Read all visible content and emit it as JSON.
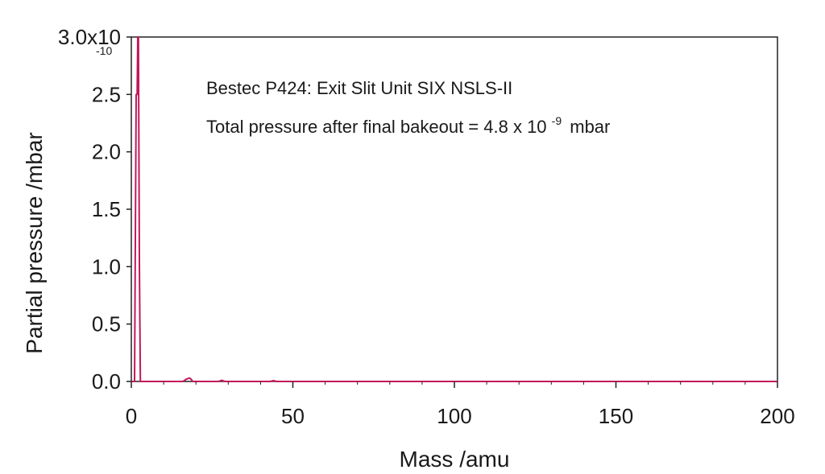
{
  "chart_data": {
    "type": "line",
    "annotations": [
      "Bestec P424: Exit Slit Unit SIX NSLS-II",
      "Total pressure after final bakeout = 4.8 x 10",
      "-9",
      "mbar"
    ],
    "xlabel": "Mass /amu",
    "ylabel": "Partial pressure /mbar",
    "y_exponent_label": "-10",
    "xlim": [
      0,
      200
    ],
    "ylim": [
      0,
      3.0
    ],
    "x_ticks": [
      0,
      50,
      100,
      150,
      200
    ],
    "x_tick_labels": [
      "0",
      "50",
      "100",
      "150",
      "200"
    ],
    "y_ticks": [
      0.0,
      0.5,
      1.0,
      1.5,
      2.0,
      2.5,
      3.0
    ],
    "y_tick_labels": [
      "0.0",
      "0.5",
      "1.0",
      "1.5",
      "2.0",
      "2.5",
      "3.0x10"
    ],
    "grid": false,
    "series": [
      {
        "color": "#c2185b",
        "x": [
          0,
          1.0,
          1.5,
          1.8,
          2.0,
          2.2,
          2.5,
          2.8,
          3.0,
          3.3,
          3.6,
          16,
          17,
          18,
          18.5,
          19,
          27,
          28,
          29,
          43,
          44,
          45,
          60,
          100,
          150,
          200
        ],
        "y": [
          0.0,
          0.0,
          2.5,
          2.5,
          3.12,
          3.0,
          1.0,
          0.0,
          0.0,
          0.0,
          0.0,
          0.0,
          0.02,
          0.03,
          0.02,
          0.0,
          0.0,
          0.01,
          0.0,
          0.0,
          0.007,
          0.0,
          0.0,
          0.0,
          0.0,
          0.0
        ]
      }
    ]
  }
}
